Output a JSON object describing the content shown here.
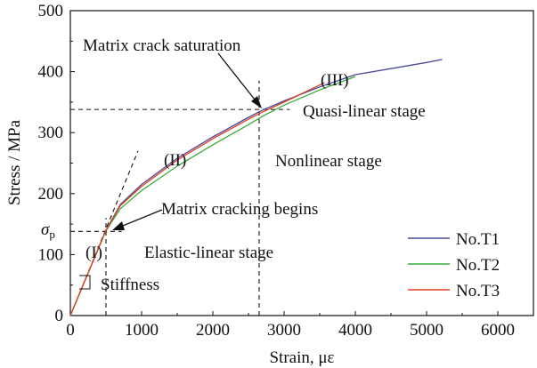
{
  "chart_data": {
    "type": "line",
    "xlabel": "Strain, με",
    "ylabel": "Stress / MPa",
    "xlim": [
      0,
      6500
    ],
    "ylim": [
      0,
      500
    ],
    "xticks": [
      0,
      1000,
      2000,
      3000,
      4000,
      5000,
      6000
    ],
    "yticks": [
      0,
      100,
      200,
      300,
      400,
      500
    ],
    "legend_position": "bottom-right",
    "series": [
      {
        "name": "No.T1",
        "color": "#4a4a9a",
        "x": [
          0,
          250,
          500,
          700,
          1000,
          1500,
          2000,
          2500,
          2700,
          3000,
          3500,
          4000,
          4500,
          5000,
          5220
        ],
        "y": [
          0,
          70,
          140,
          182,
          215,
          258,
          293,
          325,
          337,
          352,
          375,
          395,
          405,
          415,
          420
        ]
      },
      {
        "name": "No.T2",
        "color": "#3aaa3a",
        "x": [
          0,
          250,
          500,
          700,
          1000,
          1500,
          2000,
          2500,
          2700,
          3000,
          3500,
          4000
        ],
        "y": [
          0,
          70,
          139,
          175,
          205,
          245,
          280,
          313,
          327,
          345,
          370,
          392
        ]
      },
      {
        "name": "No.T3",
        "color": "#e04020",
        "x": [
          0,
          250,
          500,
          700,
          1000,
          1500,
          2000,
          2500,
          2700,
          3000,
          3570
        ],
        "y": [
          0,
          70,
          140,
          180,
          212,
          255,
          290,
          322,
          334,
          350,
          382
        ]
      }
    ],
    "reference_lines": [
      {
        "x": [
          500,
          500
        ],
        "y": [
          0,
          160
        ]
      },
      {
        "x": [
          0,
          720
        ],
        "y": [
          138,
          138
        ]
      },
      {
        "x": [
          0,
          950
        ],
        "y": [
          0,
          270
        ]
      },
      {
        "x": [
          2650,
          2650
        ],
        "y": [
          0,
          385
        ]
      },
      {
        "x": [
          0,
          3080
        ],
        "y": [
          338,
          338
        ]
      }
    ],
    "annotations": {
      "saturation": "Matrix crack saturation",
      "quasi": "Quasi-linear stage",
      "stage3": "(III)",
      "stage2": "(II)",
      "nonlinear": "Nonlinear stage",
      "cracking": "Matrix cracking begins",
      "stage1": "(I)",
      "elastic": "Elastic-linear stage",
      "stiffness": "Stiffness",
      "sigma": "σ",
      "sigma_sub": "p"
    }
  }
}
